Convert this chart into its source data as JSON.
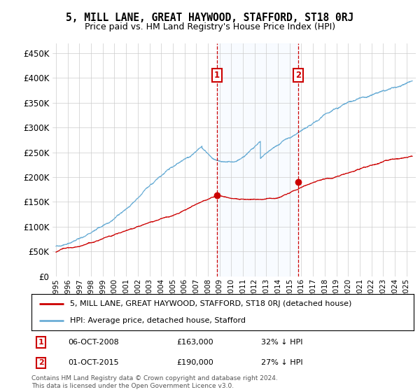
{
  "title": "5, MILL LANE, GREAT HAYWOOD, STAFFORD, ST18 0RJ",
  "subtitle": "Price paid vs. HM Land Registry's House Price Index (HPI)",
  "legend_line1": "5, MILL LANE, GREAT HAYWOOD, STAFFORD, ST18 0RJ (detached house)",
  "legend_line2": "HPI: Average price, detached house, Stafford",
  "annotation1_date": "06-OCT-2008",
  "annotation1_price": "£163,000",
  "annotation1_hpi": "32% ↓ HPI",
  "annotation2_date": "01-OCT-2015",
  "annotation2_price": "£190,000",
  "annotation2_hpi": "27% ↓ HPI",
  "footer": "Contains HM Land Registry data © Crown copyright and database right 2024.\nThis data is licensed under the Open Government Licence v3.0.",
  "hpi_color": "#6baed6",
  "property_color": "#cc0000",
  "annotation_color": "#cc0000",
  "highlight_color": "#ddeeff",
  "sale1_year": 2008.77,
  "sale2_year": 2015.75,
  "sale1_price": 163000,
  "sale2_price": 190000,
  "ylim": [
    0,
    470000
  ],
  "yticks": [
    0,
    50000,
    100000,
    150000,
    200000,
    250000,
    300000,
    350000,
    400000,
    450000
  ]
}
